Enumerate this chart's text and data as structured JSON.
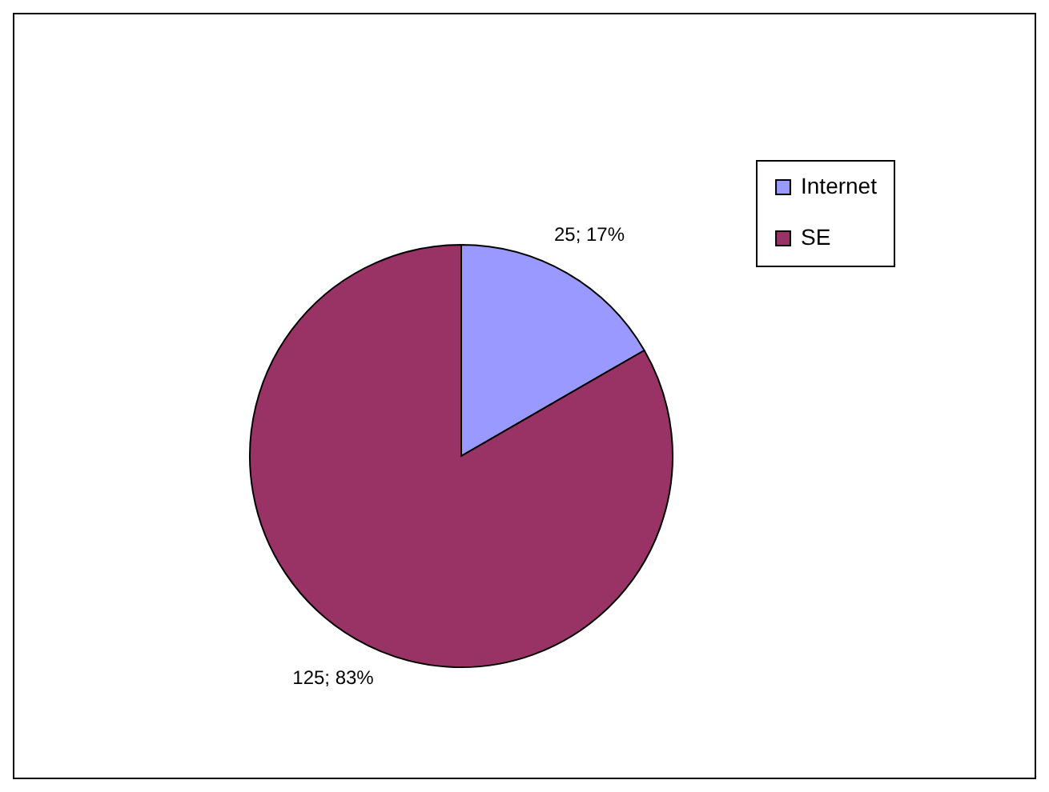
{
  "chart_data": {
    "type": "pie",
    "categories": [
      "Internet",
      "SE"
    ],
    "values": [
      25,
      125
    ],
    "colors": [
      "#9999ff",
      "#993366"
    ],
    "value_labels": [
      "25; 17%",
      "125; 83%"
    ],
    "legend": "top right"
  }
}
